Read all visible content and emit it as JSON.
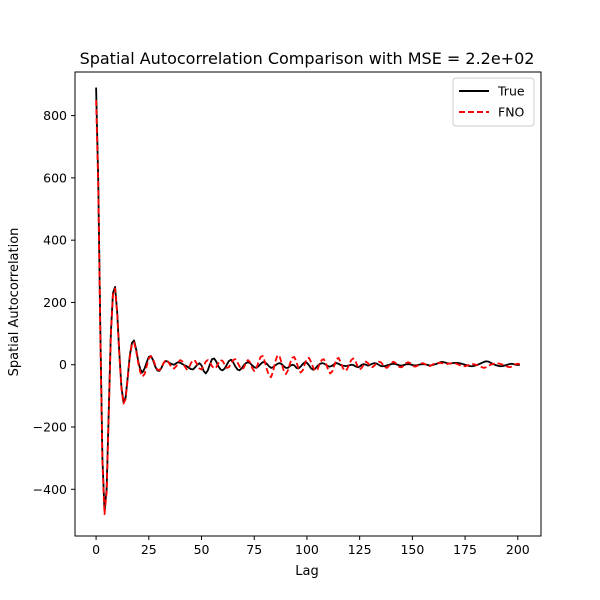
{
  "chart_data": {
    "type": "line",
    "title": "Spatial Autocorrelation Comparison with MSE = 2.2e+02",
    "xlabel": "Lag",
    "ylabel": "Spatial Autocorrelation",
    "xlim": [
      -10,
      211
    ],
    "ylim": [
      -550,
      940
    ],
    "xticks": [
      0,
      25,
      50,
      75,
      100,
      125,
      150,
      175,
      200
    ],
    "yticks": [
      -400,
      -200,
      0,
      200,
      400,
      600,
      800
    ],
    "xtick_labels": [
      "0",
      "25",
      "50",
      "75",
      "100",
      "125",
      "150",
      "175",
      "200"
    ],
    "ytick_labels": [
      "−400",
      "−200",
      "0",
      "200",
      "400",
      "600",
      "800"
    ],
    "grid": false,
    "legend_position": "top-right",
    "series": [
      {
        "name": "True",
        "color": "#000000",
        "style": "solid",
        "x": [
          0,
          1,
          2,
          3,
          4,
          5,
          6,
          7,
          8,
          9,
          10,
          11,
          12,
          13,
          14,
          15,
          16,
          17,
          18,
          19,
          20,
          21,
          22,
          23,
          24,
          25,
          26,
          27,
          28,
          29,
          30,
          31,
          32,
          33,
          34,
          35,
          36,
          37,
          38,
          39,
          40,
          41,
          42,
          43,
          44,
          45,
          46,
          47,
          48,
          49,
          50,
          51,
          52,
          53,
          54,
          55,
          56,
          57,
          58,
          59,
          60,
          61,
          62,
          63,
          64,
          65,
          66,
          67,
          68,
          69,
          70,
          71,
          72,
          73,
          74,
          75,
          76,
          77,
          78,
          79,
          80,
          81,
          82,
          83,
          84,
          85,
          86,
          87,
          88,
          89,
          90,
          91,
          92,
          93,
          94,
          95,
          96,
          97,
          98,
          99,
          100,
          101,
          102,
          103,
          104,
          105,
          106,
          107,
          108,
          109,
          110,
          111,
          112,
          113,
          114,
          115,
          116,
          117,
          118,
          119,
          120,
          121,
          122,
          123,
          124,
          125,
          126,
          127,
          128,
          129,
          130,
          131,
          132,
          133,
          134,
          135,
          136,
          137,
          138,
          139,
          140,
          141,
          142,
          143,
          144,
          145,
          146,
          147,
          148,
          149,
          150,
          151,
          152,
          153,
          154,
          155,
          156,
          157,
          158,
          159,
          160,
          161,
          162,
          163,
          164,
          165,
          166,
          167,
          168,
          169,
          170,
          171,
          172,
          173,
          174,
          175,
          176,
          177,
          178,
          179,
          180,
          181,
          182,
          183,
          184,
          185,
          186,
          187,
          188,
          189,
          190,
          191,
          192,
          193,
          194,
          195,
          196,
          197,
          198,
          199,
          200,
          201
        ],
        "y": [
          890,
          600,
          120,
          -300,
          -470,
          -400,
          -150,
          100,
          230,
          250,
          170,
          40,
          -70,
          -120,
          -105,
          -40,
          30,
          70,
          78,
          50,
          10,
          -15,
          -25,
          -12,
          8,
          25,
          28,
          15,
          -5,
          -18,
          -20,
          -10,
          5,
          12,
          10,
          5,
          2,
          0,
          5,
          8,
          6,
          2,
          -2,
          -5,
          -10,
          -14,
          -15,
          -8,
          0,
          5,
          -2,
          -20,
          -28,
          -18,
          2,
          18,
          20,
          10,
          -5,
          -15,
          -18,
          -12,
          0,
          12,
          16,
          8,
          -5,
          -15,
          -18,
          -12,
          -2,
          5,
          8,
          5,
          -2,
          -8,
          -10,
          -5,
          2,
          8,
          8,
          3,
          -5,
          -10,
          -8,
          -2,
          3,
          5,
          2,
          -5,
          -10,
          -10,
          -4,
          0,
          -2,
          -10,
          -12,
          -6,
          2,
          8,
          6,
          -2,
          -12,
          -16,
          -12,
          -4,
          2,
          5,
          4,
          0,
          -5,
          -6,
          -3,
          2,
          5,
          3,
          -1,
          -3,
          -4,
          -4,
          -2,
          0,
          -1,
          -5,
          -8,
          -6,
          0,
          2,
          0,
          -3,
          0,
          3,
          5,
          4,
          0,
          -4,
          -5,
          -4,
          -2,
          0,
          2,
          3,
          2,
          0,
          -2,
          -3,
          -1,
          1,
          2,
          1,
          -1,
          -2,
          -2,
          0,
          1,
          2,
          1,
          0,
          -2,
          -2,
          0,
          2,
          4,
          7,
          9,
          8,
          6,
          4,
          4,
          5,
          6,
          6,
          5,
          4,
          2,
          0,
          -2,
          -4,
          -5,
          -4,
          -2,
          0,
          3,
          6,
          9,
          11,
          10,
          7,
          3,
          0,
          -2,
          -4,
          -5,
          -4,
          -2,
          0,
          2,
          3,
          2,
          0,
          -1,
          0
        ]
      },
      {
        "name": "FNO",
        "color": "#ff0000",
        "style": "dashed",
        "x": [
          0,
          1,
          2,
          3,
          4,
          5,
          6,
          7,
          8,
          9,
          10,
          11,
          12,
          13,
          14,
          15,
          16,
          17,
          18,
          19,
          20,
          21,
          22,
          23,
          24,
          25,
          26,
          27,
          28,
          29,
          30,
          31,
          32,
          33,
          34,
          35,
          36,
          37,
          38,
          39,
          40,
          41,
          42,
          43,
          44,
          45,
          46,
          47,
          48,
          49,
          50,
          51,
          52,
          53,
          54,
          55,
          56,
          57,
          58,
          59,
          60,
          61,
          62,
          63,
          64,
          65,
          66,
          67,
          68,
          69,
          70,
          71,
          72,
          73,
          74,
          75,
          76,
          77,
          78,
          79,
          80,
          81,
          82,
          83,
          84,
          85,
          86,
          87,
          88,
          89,
          90,
          91,
          92,
          93,
          94,
          95,
          96,
          97,
          98,
          99,
          100,
          101,
          102,
          103,
          104,
          105,
          106,
          107,
          108,
          109,
          110,
          111,
          112,
          113,
          114,
          115,
          116,
          117,
          118,
          119,
          120,
          121,
          122,
          123,
          124,
          125,
          126,
          127,
          128,
          129,
          130,
          131,
          132,
          133,
          134,
          135,
          136,
          137,
          138,
          139,
          140,
          141,
          142,
          143,
          144,
          145,
          146,
          147,
          148,
          149,
          150,
          151,
          152,
          153,
          154,
          155,
          156,
          157,
          158,
          159,
          160,
          161,
          162,
          163,
          164,
          165,
          166,
          167,
          168,
          169,
          170,
          171,
          172,
          173,
          174,
          175,
          176,
          177,
          178,
          179,
          180,
          181,
          182,
          183,
          184,
          185,
          186,
          187,
          188,
          189,
          190,
          191,
          192,
          193,
          194,
          195,
          196,
          197,
          198,
          199,
          200,
          201
        ],
        "y": [
          850,
          580,
          100,
          -310,
          -480,
          -410,
          -160,
          95,
          225,
          245,
          165,
          35,
          -75,
          -125,
          -110,
          -45,
          25,
          65,
          72,
          45,
          5,
          -25,
          -38,
          -30,
          -5,
          20,
          28,
          18,
          0,
          -15,
          -18,
          -8,
          5,
          15,
          12,
          0,
          -10,
          -12,
          -5,
          8,
          15,
          10,
          -5,
          -15,
          -10,
          5,
          15,
          12,
          0,
          -12,
          -15,
          -5,
          10,
          15,
          8,
          -5,
          -12,
          -8,
          5,
          15,
          12,
          0,
          -10,
          -8,
          5,
          15,
          18,
          8,
          -5,
          -15,
          -10,
          5,
          15,
          8,
          -10,
          -20,
          -12,
          8,
          25,
          28,
          10,
          -15,
          -35,
          -40,
          -20,
          10,
          30,
          28,
          5,
          -20,
          -30,
          -18,
          5,
          22,
          25,
          10,
          -12,
          -25,
          -18,
          2,
          20,
          22,
          8,
          -10,
          -20,
          -15,
          2,
          15,
          18,
          5,
          -15,
          -28,
          -22,
          -2,
          18,
          22,
          8,
          -10,
          -20,
          -15,
          0,
          15,
          20,
          12,
          -5,
          -15,
          -10,
          2,
          10,
          5,
          -5,
          -8,
          -3,
          5,
          10,
          8,
          0,
          -8,
          -10,
          -3,
          5,
          10,
          6,
          -2,
          -8,
          -8,
          -2,
          5,
          8,
          5,
          -2,
          -6,
          -5,
          0,
          4,
          5,
          2,
          -3,
          -5,
          -2,
          2,
          5,
          6,
          6,
          5,
          4,
          3,
          3,
          4,
          5,
          5,
          3,
          0,
          -3,
          -5,
          -5,
          -3,
          0,
          2,
          2,
          0,
          -2,
          -5,
          -8,
          -10,
          -8,
          -4,
          0,
          2,
          4,
          5,
          4,
          2,
          0,
          -3,
          -6,
          -8,
          -6,
          -2,
          2,
          3,
          2
        ]
      }
    ]
  }
}
